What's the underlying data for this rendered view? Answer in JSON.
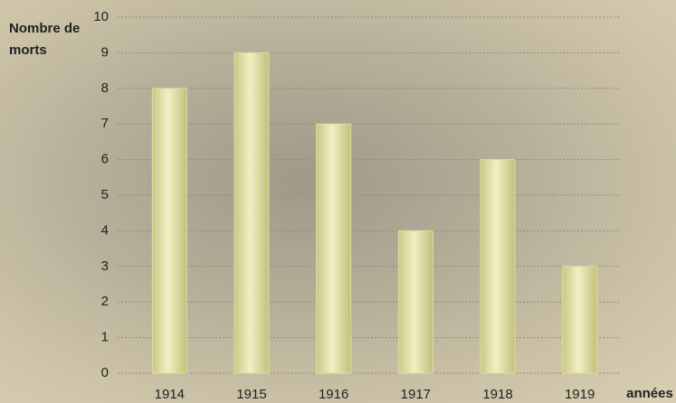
{
  "chart_data": {
    "type": "bar",
    "y_label": "Nombre de morts",
    "x_label": "années",
    "categories": [
      "1914",
      "1915",
      "1916",
      "1917",
      "1918",
      "1919"
    ],
    "values": [
      8,
      9,
      7,
      4,
      6,
      3
    ],
    "color": "#dedda0",
    "ylim": [
      0,
      10
    ],
    "yticks": [
      0,
      1,
      2,
      3,
      4,
      5,
      6,
      7,
      8,
      9,
      10
    ],
    "grid": true
  }
}
